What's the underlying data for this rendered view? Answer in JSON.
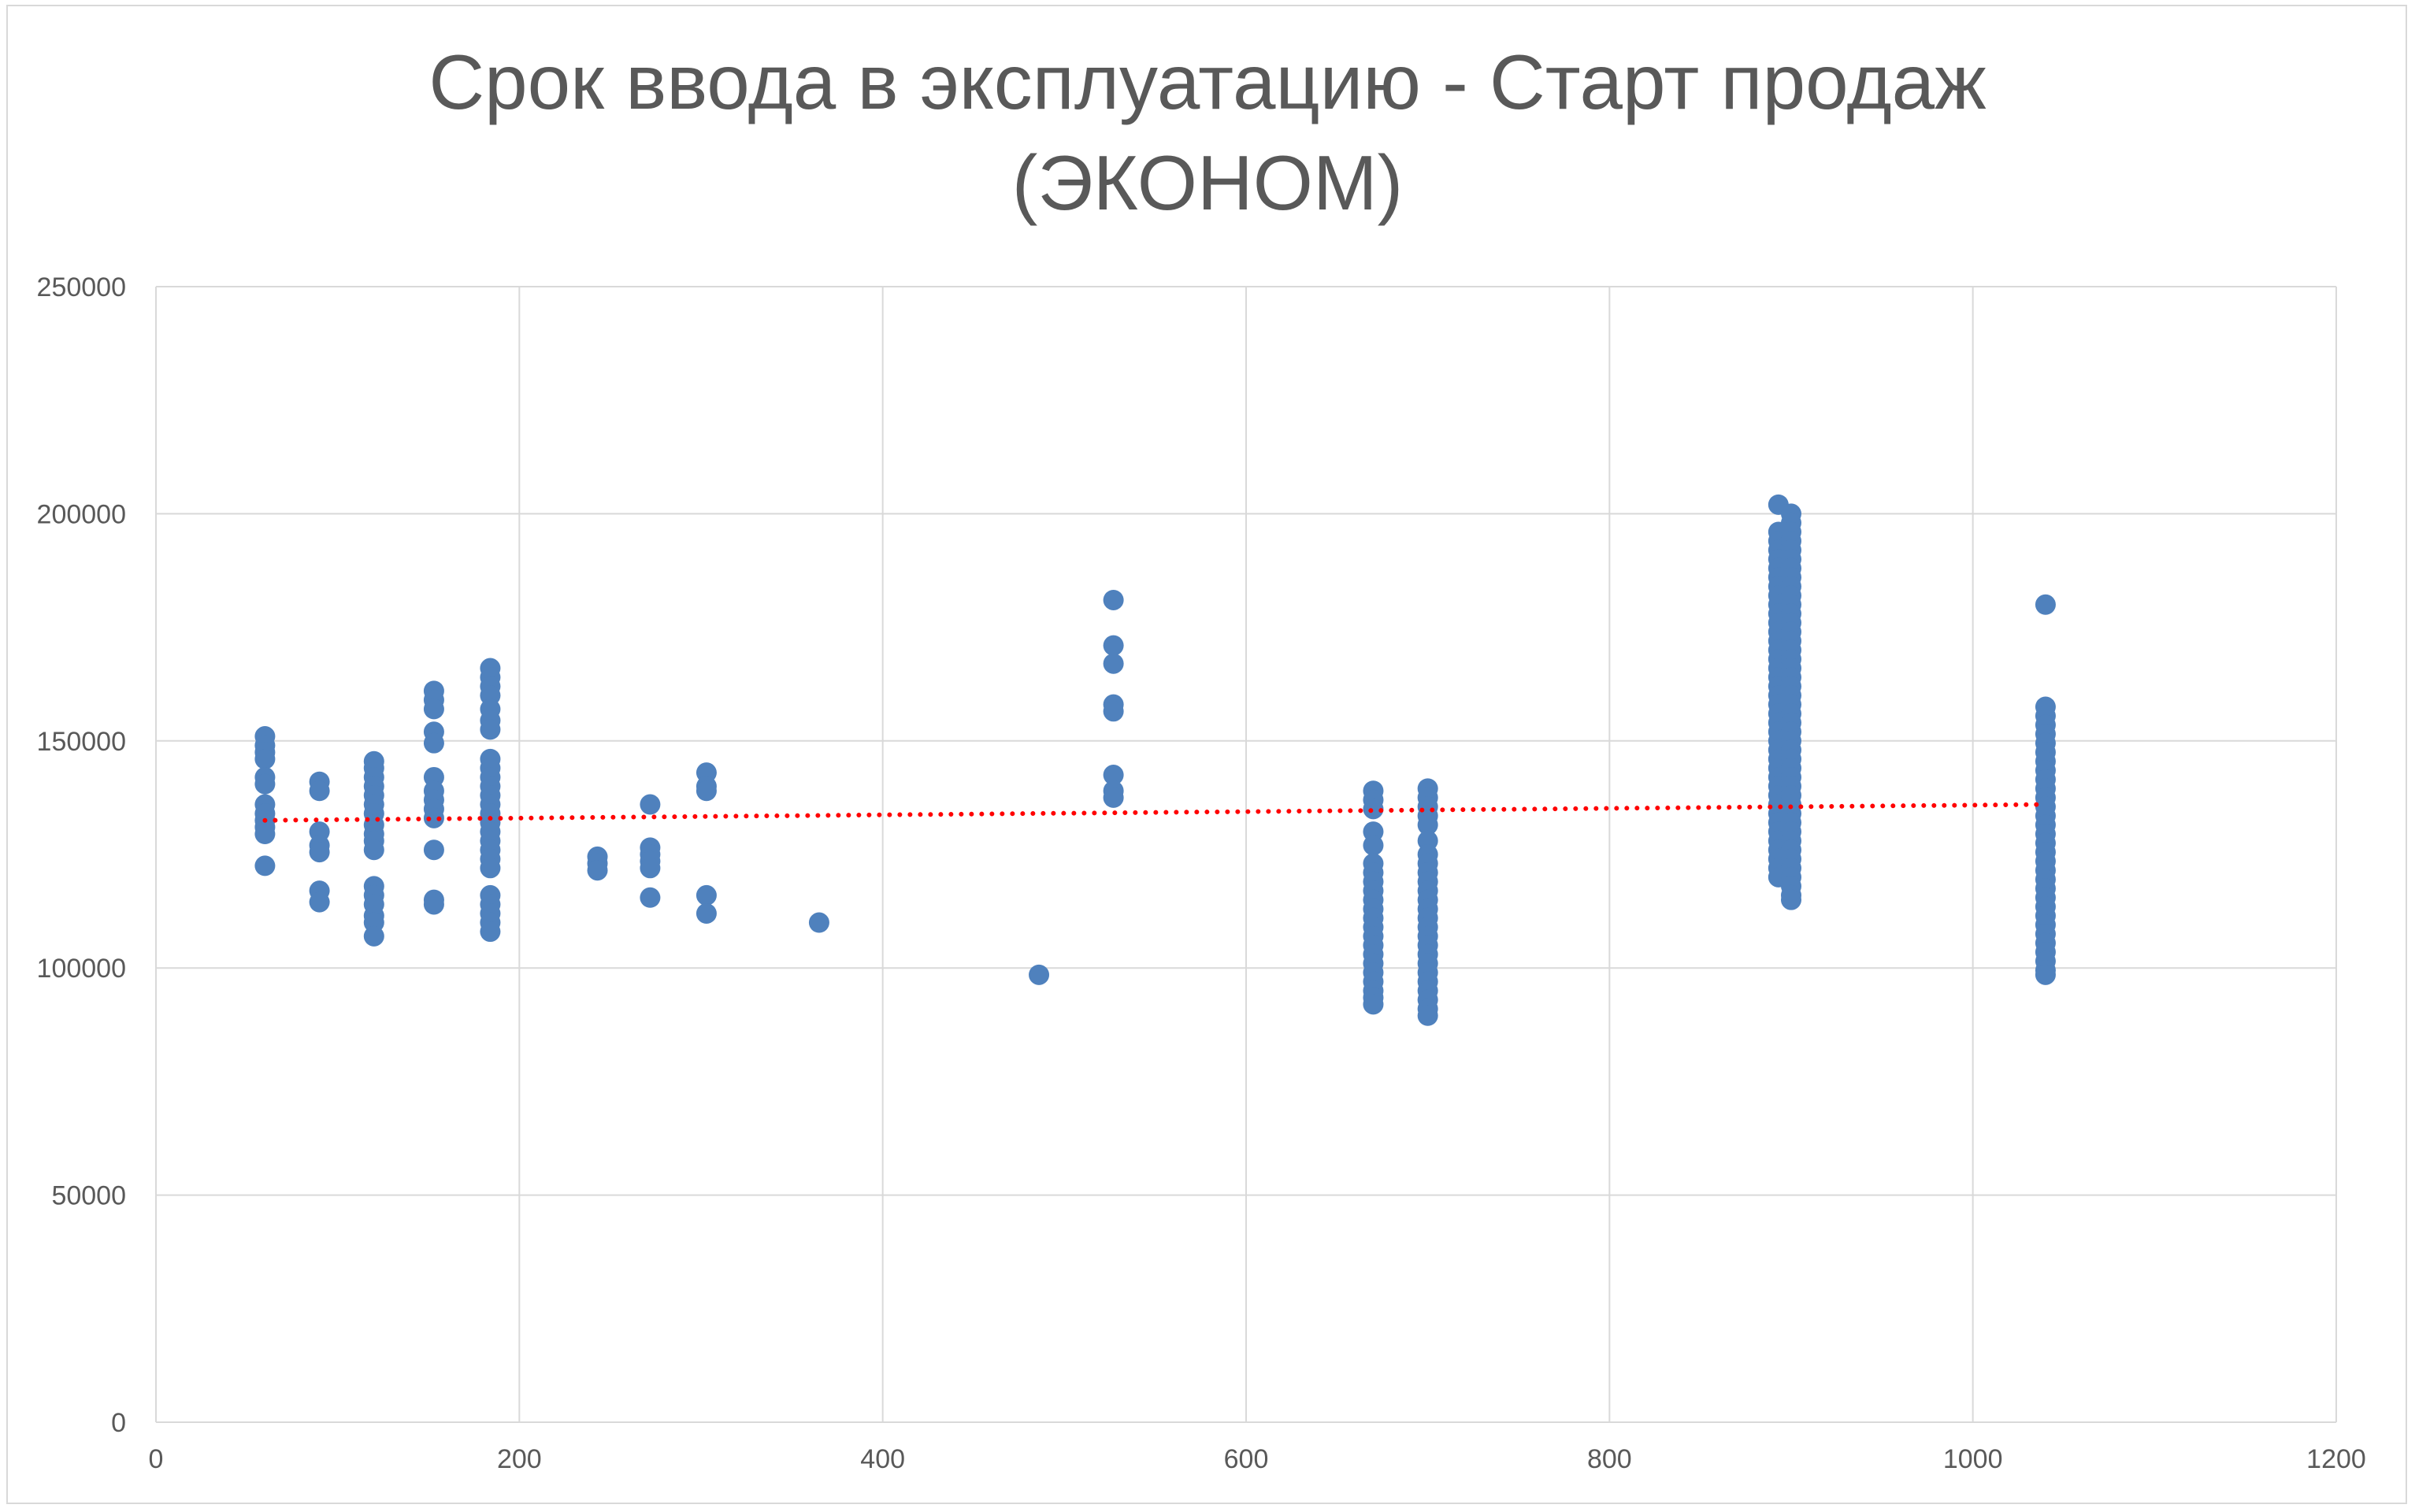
{
  "chart_data": {
    "type": "scatter",
    "title_lines": [
      "Срок ввода в эксплуатацию - Старт продаж",
      "(ЭКОНОМ)"
    ],
    "xlabel": "",
    "ylabel": "",
    "xlim": [
      0,
      1200
    ],
    "ylim": [
      0,
      250000
    ],
    "x_ticks": [
      "0",
      "200",
      "400",
      "600",
      "800",
      "1000",
      "1200"
    ],
    "y_ticks": [
      "0",
      "50000",
      "100000",
      "150000",
      "200000",
      "250000"
    ],
    "grid": true,
    "legend": "none",
    "point_color": "#4f81bd",
    "trendline_color": "#ff0000",
    "trendline": {
      "type": "linear",
      "dotted": true,
      "x": [
        60,
        1040
      ],
      "y": [
        132500,
        136000
      ]
    },
    "series": [
      {
        "points": [
          [
            60,
            151000
          ],
          [
            60,
            149000
          ],
          [
            60,
            147500
          ],
          [
            60,
            146000
          ],
          [
            60,
            142000
          ],
          [
            60,
            140500
          ],
          [
            60,
            136000
          ],
          [
            60,
            134000
          ],
          [
            60,
            132500
          ],
          [
            60,
            131000
          ],
          [
            60,
            129500
          ],
          [
            60,
            122500
          ],
          [
            90,
            141000
          ],
          [
            90,
            139000
          ],
          [
            90,
            130000
          ],
          [
            90,
            127000
          ],
          [
            90,
            125500
          ],
          [
            90,
            117000
          ],
          [
            90,
            114500
          ],
          [
            120,
            145500
          ],
          [
            120,
            144000
          ],
          [
            120,
            142000
          ],
          [
            120,
            140000
          ],
          [
            120,
            138000
          ],
          [
            120,
            136000
          ],
          [
            120,
            134000
          ],
          [
            120,
            131500
          ],
          [
            120,
            129500
          ],
          [
            120,
            128000
          ],
          [
            120,
            126000
          ],
          [
            120,
            118000
          ],
          [
            120,
            116000
          ],
          [
            120,
            114000
          ],
          [
            120,
            111500
          ],
          [
            120,
            110000
          ],
          [
            120,
            107000
          ],
          [
            153,
            161000
          ],
          [
            153,
            159000
          ],
          [
            153,
            157000
          ],
          [
            153,
            152000
          ],
          [
            153,
            149500
          ],
          [
            153,
            142000
          ],
          [
            153,
            139000
          ],
          [
            153,
            137000
          ],
          [
            153,
            135000
          ],
          [
            153,
            133000
          ],
          [
            153,
            126000
          ],
          [
            153,
            115000
          ],
          [
            153,
            114000
          ],
          [
            184,
            166000
          ],
          [
            184,
            164000
          ],
          [
            184,
            162000
          ],
          [
            184,
            160000
          ],
          [
            184,
            157000
          ],
          [
            184,
            154500
          ],
          [
            184,
            152500
          ],
          [
            184,
            146000
          ],
          [
            184,
            144000
          ],
          [
            184,
            142000
          ],
          [
            184,
            140000
          ],
          [
            184,
            138000
          ],
          [
            184,
            136000
          ],
          [
            184,
            134000
          ],
          [
            184,
            132000
          ],
          [
            184,
            130000
          ],
          [
            184,
            128000
          ],
          [
            184,
            126000
          ],
          [
            184,
            124000
          ],
          [
            184,
            122000
          ],
          [
            184,
            116000
          ],
          [
            184,
            114000
          ],
          [
            184,
            112000
          ],
          [
            184,
            110000
          ],
          [
            184,
            108000
          ],
          [
            243,
            124500
          ],
          [
            243,
            123000
          ],
          [
            243,
            121500
          ],
          [
            272,
            136000
          ],
          [
            272,
            126500
          ],
          [
            272,
            125000
          ],
          [
            272,
            123500
          ],
          [
            272,
            122000
          ],
          [
            272,
            115500
          ],
          [
            303,
            143000
          ],
          [
            303,
            140000
          ],
          [
            303,
            139000
          ],
          [
            303,
            116000
          ],
          [
            303,
            112000
          ],
          [
            365,
            110000
          ],
          [
            486,
            98500
          ],
          [
            527,
            181000
          ],
          [
            527,
            171000
          ],
          [
            527,
            167000
          ],
          [
            527,
            158000
          ],
          [
            527,
            156500
          ],
          [
            527,
            142500
          ],
          [
            527,
            139000
          ],
          [
            527,
            137500
          ],
          [
            670,
            139000
          ],
          [
            670,
            137000
          ],
          [
            670,
            135000
          ],
          [
            670,
            130000
          ],
          [
            670,
            127000
          ],
          [
            670,
            123000
          ],
          [
            670,
            121000
          ],
          [
            670,
            119000
          ],
          [
            670,
            117000
          ],
          [
            670,
            115000
          ],
          [
            670,
            113000
          ],
          [
            670,
            111000
          ],
          [
            670,
            109000
          ],
          [
            670,
            107000
          ],
          [
            670,
            105000
          ],
          [
            670,
            103000
          ],
          [
            670,
            101000
          ],
          [
            670,
            99000
          ],
          [
            670,
            97000
          ],
          [
            670,
            95000
          ],
          [
            670,
            93500
          ],
          [
            670,
            92000
          ],
          [
            700,
            139500
          ],
          [
            700,
            137500
          ],
          [
            700,
            135500
          ],
          [
            700,
            133500
          ],
          [
            700,
            131500
          ],
          [
            700,
            128000
          ],
          [
            700,
            125000
          ],
          [
            700,
            123000
          ],
          [
            700,
            121000
          ],
          [
            700,
            119000
          ],
          [
            700,
            117000
          ],
          [
            700,
            115000
          ],
          [
            700,
            113000
          ],
          [
            700,
            111000
          ],
          [
            700,
            109000
          ],
          [
            700,
            107000
          ],
          [
            700,
            105000
          ],
          [
            700,
            103000
          ],
          [
            700,
            101000
          ],
          [
            700,
            99000
          ],
          [
            700,
            97000
          ],
          [
            700,
            95000
          ],
          [
            700,
            93000
          ],
          [
            700,
            91000
          ],
          [
            700,
            89500
          ],
          [
            893,
            202000
          ],
          [
            893,
            196000
          ],
          [
            893,
            194000
          ],
          [
            893,
            192000
          ],
          [
            893,
            190000
          ],
          [
            893,
            188000
          ],
          [
            893,
            186000
          ],
          [
            893,
            184000
          ],
          [
            893,
            182000
          ],
          [
            893,
            180000
          ],
          [
            893,
            178000
          ],
          [
            893,
            176000
          ],
          [
            893,
            174000
          ],
          [
            893,
            172000
          ],
          [
            893,
            170000
          ],
          [
            893,
            168000
          ],
          [
            893,
            166000
          ],
          [
            893,
            164000
          ],
          [
            893,
            162000
          ],
          [
            893,
            160000
          ],
          [
            893,
            158000
          ],
          [
            893,
            156000
          ],
          [
            893,
            154000
          ],
          [
            893,
            152000
          ],
          [
            893,
            150000
          ],
          [
            893,
            148000
          ],
          [
            893,
            146000
          ],
          [
            893,
            144000
          ],
          [
            893,
            142000
          ],
          [
            893,
            140000
          ],
          [
            893,
            138000
          ],
          [
            893,
            136000
          ],
          [
            893,
            134000
          ],
          [
            893,
            132000
          ],
          [
            893,
            130000
          ],
          [
            893,
            128000
          ],
          [
            893,
            126000
          ],
          [
            893,
            124000
          ],
          [
            893,
            122000
          ],
          [
            893,
            120000
          ],
          [
            900,
            200000
          ],
          [
            900,
            198000
          ],
          [
            900,
            196000
          ],
          [
            900,
            194000
          ],
          [
            900,
            192000
          ],
          [
            900,
            190000
          ],
          [
            900,
            188000
          ],
          [
            900,
            186000
          ],
          [
            900,
            184000
          ],
          [
            900,
            182000
          ],
          [
            900,
            180000
          ],
          [
            900,
            178000
          ],
          [
            900,
            176000
          ],
          [
            900,
            174000
          ],
          [
            900,
            172000
          ],
          [
            900,
            170000
          ],
          [
            900,
            168000
          ],
          [
            900,
            166000
          ],
          [
            900,
            164000
          ],
          [
            900,
            162000
          ],
          [
            900,
            160000
          ],
          [
            900,
            158000
          ],
          [
            900,
            156000
          ],
          [
            900,
            154000
          ],
          [
            900,
            152000
          ],
          [
            900,
            150000
          ],
          [
            900,
            148000
          ],
          [
            900,
            146000
          ],
          [
            900,
            144000
          ],
          [
            900,
            142000
          ],
          [
            900,
            140000
          ],
          [
            900,
            138000
          ],
          [
            900,
            136000
          ],
          [
            900,
            134000
          ],
          [
            900,
            132000
          ],
          [
            900,
            130000
          ],
          [
            900,
            128000
          ],
          [
            900,
            126000
          ],
          [
            900,
            124000
          ],
          [
            900,
            122000
          ],
          [
            900,
            120000
          ],
          [
            900,
            118000
          ],
          [
            900,
            116000
          ],
          [
            900,
            115000
          ],
          [
            1040,
            180000
          ],
          [
            1040,
            157500
          ],
          [
            1040,
            155500
          ],
          [
            1040,
            153500
          ],
          [
            1040,
            151500
          ],
          [
            1040,
            149500
          ],
          [
            1040,
            147500
          ],
          [
            1040,
            145500
          ],
          [
            1040,
            143500
          ],
          [
            1040,
            141500
          ],
          [
            1040,
            139500
          ],
          [
            1040,
            137500
          ],
          [
            1040,
            135500
          ],
          [
            1040,
            133500
          ],
          [
            1040,
            131500
          ],
          [
            1040,
            129500
          ],
          [
            1040,
            127500
          ],
          [
            1040,
            125500
          ],
          [
            1040,
            123500
          ],
          [
            1040,
            121500
          ],
          [
            1040,
            119500
          ],
          [
            1040,
            117500
          ],
          [
            1040,
            115500
          ],
          [
            1040,
            113500
          ],
          [
            1040,
            111500
          ],
          [
            1040,
            109500
          ],
          [
            1040,
            107500
          ],
          [
            1040,
            105500
          ],
          [
            1040,
            103500
          ],
          [
            1040,
            101500
          ],
          [
            1040,
            99500
          ],
          [
            1040,
            98500
          ]
        ]
      }
    ]
  }
}
